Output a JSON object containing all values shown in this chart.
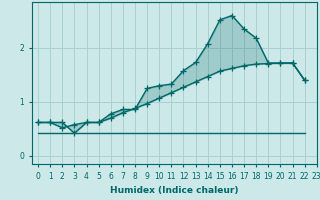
{
  "xlabel": "Humidex (Indice chaleur)",
  "background_color": "#cce8e8",
  "grid_color": "#aad0d0",
  "line_color": "#006868",
  "xlim": [
    -0.5,
    23
  ],
  "ylim": [
    -0.15,
    2.85
  ],
  "yticks": [
    0,
    1,
    2
  ],
  "xticks": [
    0,
    1,
    2,
    3,
    4,
    5,
    6,
    7,
    8,
    9,
    10,
    11,
    12,
    13,
    14,
    15,
    16,
    17,
    18,
    19,
    20,
    21,
    22,
    23
  ],
  "line1_x": [
    0,
    1,
    2,
    3,
    4,
    5,
    6,
    7,
    8,
    9,
    10,
    11,
    12,
    13,
    14,
    15,
    16,
    17,
    18,
    19,
    20,
    21,
    22
  ],
  "line1_y": [
    0.62,
    0.62,
    0.52,
    0.58,
    0.62,
    0.62,
    0.78,
    0.86,
    0.86,
    1.25,
    1.3,
    1.33,
    1.58,
    1.73,
    2.08,
    2.52,
    2.6,
    2.35,
    2.18,
    1.72,
    1.72,
    1.72,
    1.4
  ],
  "line2_x": [
    0,
    1,
    2,
    3,
    4,
    5,
    6,
    7,
    8,
    9,
    10,
    11,
    12,
    13,
    14,
    15,
    16,
    17,
    18,
    19,
    20,
    21,
    22
  ],
  "line2_y": [
    0.62,
    0.62,
    0.62,
    0.42,
    0.62,
    0.62,
    0.7,
    0.8,
    0.88,
    0.97,
    1.07,
    1.17,
    1.27,
    1.37,
    1.47,
    1.57,
    1.62,
    1.67,
    1.7,
    1.71,
    1.72,
    1.72,
    1.4
  ],
  "line3_x": [
    0,
    22
  ],
  "line3_y": [
    0.42,
    0.42
  ],
  "marker": "+",
  "markersize": 4,
  "fill_alpha": 0.22
}
